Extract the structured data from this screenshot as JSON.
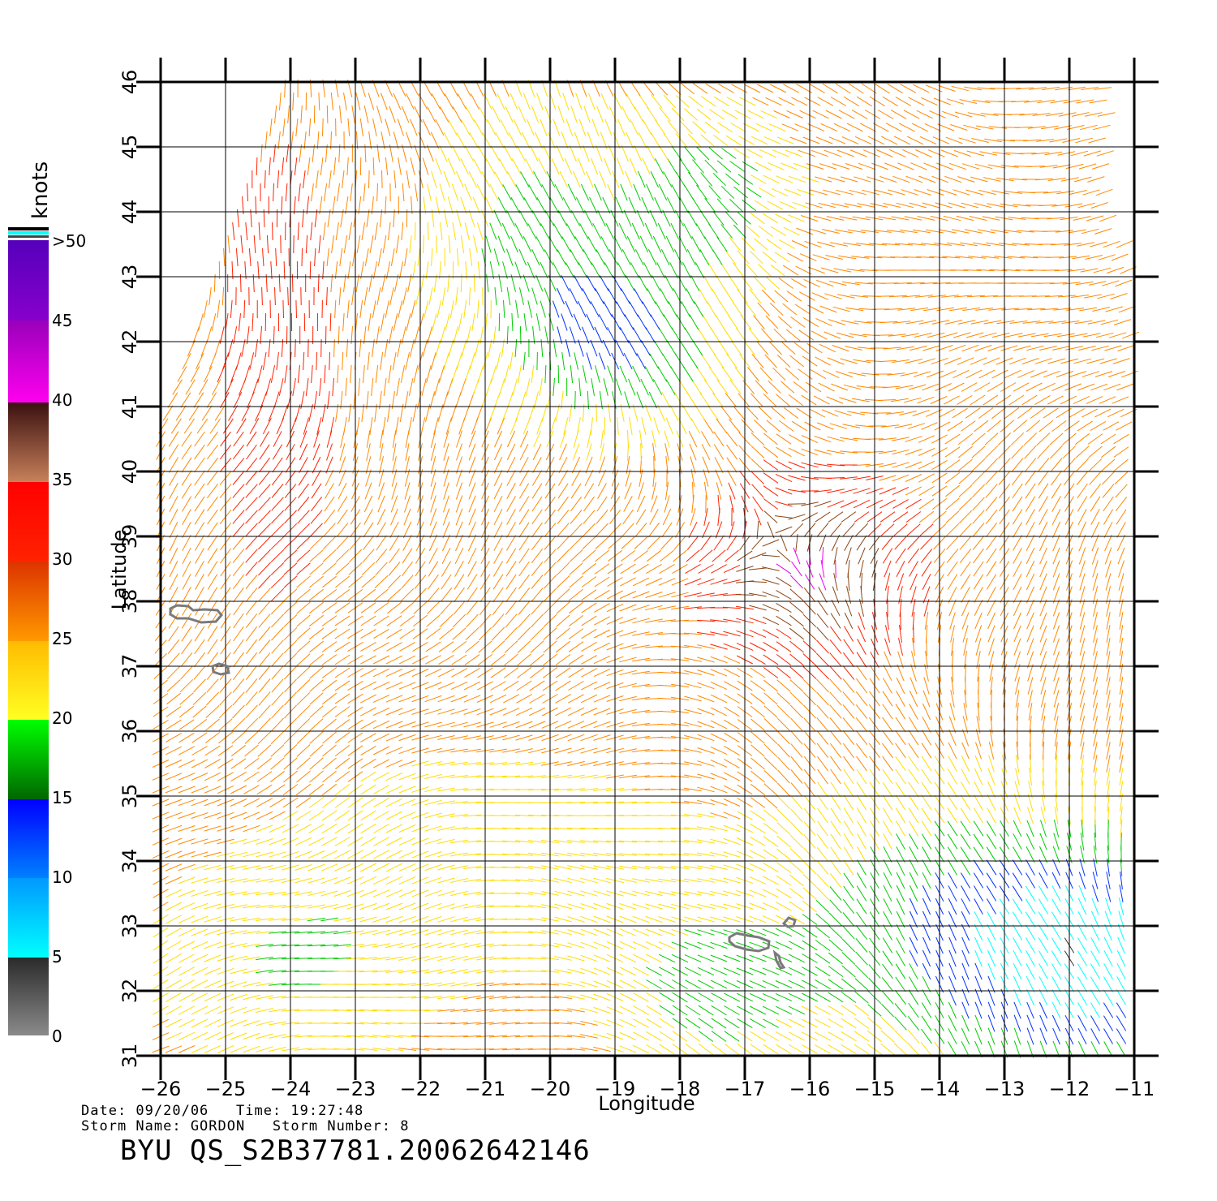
{
  "map": {
    "xlabel": "Longitude",
    "ylabel": "Latitude",
    "lon_ticks": [
      -26,
      -25,
      -24,
      -23,
      -22,
      -21,
      -20,
      -19,
      -18,
      -17,
      -16,
      -15,
      -14,
      -13,
      -12,
      -11
    ],
    "lat_ticks": [
      31,
      32,
      33,
      34,
      35,
      36,
      37,
      38,
      39,
      40,
      41,
      42,
      43,
      44,
      45,
      46
    ],
    "lon_range": [
      -26,
      -11
    ],
    "lat_range": [
      31,
      46
    ],
    "grid": true
  },
  "colorbar": {
    "unit": "knots",
    "labels": [
      {
        "text": "0",
        "value": 0
      },
      {
        "text": "5",
        "value": 5
      },
      {
        "text": "10",
        "value": 10
      },
      {
        "text": "15",
        "value": 15
      },
      {
        "text": "20",
        "value": 20
      },
      {
        "text": "25",
        "value": 25
      },
      {
        "text": "30",
        "value": 30
      },
      {
        "text": "35",
        "value": 35
      },
      {
        "text": "40",
        "value": 40
      },
      {
        "text": "45",
        "value": 45
      },
      {
        "text": ">50",
        "value": 50
      }
    ],
    "colors": {
      "gray": "#808080",
      "black": "#333333",
      "cyan": "#00ffff",
      "blue": "#0033ff",
      "green": "#00cc00",
      "yellow": "#ffdd00",
      "orange": "#ff8800",
      "red": "#ff2200",
      "brown": "#8b4513",
      "magenta": "#ee00ee",
      "purple": "#6600cc"
    }
  },
  "info": {
    "line1": "Date: 09/20/06   Time: 19:27:48",
    "line2": "Storm Name: GORDON   Storm Number: 8",
    "title": "BYU QS_S2B37781.20062642146"
  }
}
